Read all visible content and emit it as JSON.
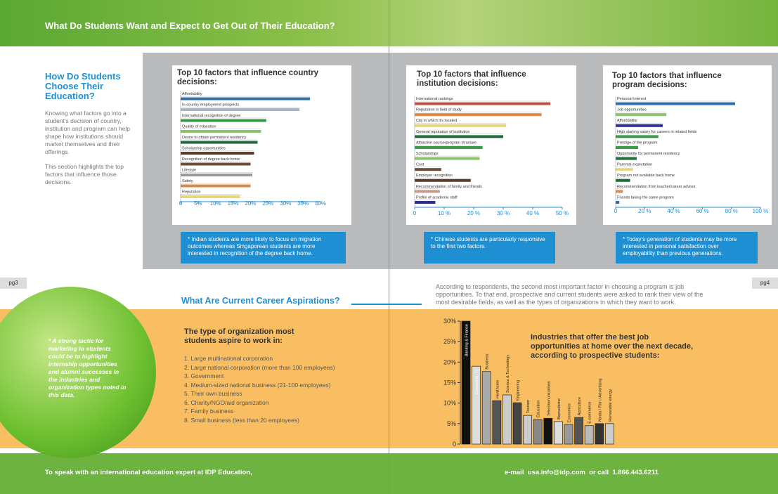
{
  "header": {
    "title": "What Do Students Want and Expect to Get Out of Their Education?"
  },
  "intro": {
    "heading": "How Do Students Choose Their Education?",
    "paragraphs": [
      "Knowing what factors go into a student's decision of country, institution and program can help shape how institutions should market themselves and their offerings.",
      "This section highlights the top factors that influence those decisions."
    ]
  },
  "page_numbers": [
    "pg3",
    "pg4"
  ],
  "chart_data": [
    {
      "type": "hbar",
      "title": "Top 10 factors that influence country decisions:",
      "categories": [
        "Affordability",
        "In-country employment prospects",
        "International recognition of degree",
        "Quality of education",
        "Desire to obtain permanent residency",
        "Scholarship opportunities",
        "Recognition of degree back home",
        "Lifestyle",
        "Safety",
        "Reputation"
      ],
      "values": [
        37,
        34,
        24.5,
        23,
        22,
        21,
        20,
        20.5,
        20,
        17
      ],
      "colors": [
        "#2f6ea6",
        "#a3b6c9",
        "#3a9a4a",
        "#8cc46c",
        "#1f6b3a",
        "#5a3b2c",
        "#6e4c3c",
        "#9a9a9a",
        "#d88a4a",
        "#e6d67e"
      ],
      "xlim": [
        0,
        40
      ],
      "xticks": [
        0,
        {
          "value": 5,
          "label": "5%"
        },
        {
          "value": 10,
          "label": "10%"
        },
        {
          "value": 15,
          "label": "15%"
        },
        {
          "value": 20,
          "label": "20%"
        },
        {
          "value": 25,
          "label": "25%"
        },
        {
          "value": 30,
          "label": "30%"
        },
        {
          "value": 35,
          "label": "35%"
        },
        {
          "value": 40,
          "label": "40%"
        }
      ],
      "note": "* Indian students are more likely to focus on migration outcomes whereas Singaporean students are more interested in recognition of the degree back home."
    },
    {
      "type": "hbar",
      "title": "Top 10 factors that influence institution decisions:",
      "categories": [
        "International rankings",
        "Reputation in field of study",
        "City in which it's located",
        "General reputation of institution",
        "Attractive course/program structure",
        "Scholarships",
        "Cost",
        "Employer recognition",
        "Recommendation of family and friends",
        "Profile of academic staff"
      ],
      "values": [
        46,
        43,
        31,
        30,
        23,
        22,
        9,
        19,
        8.5,
        7
      ],
      "colors": [
        "#c0504a",
        "#d88a4a",
        "#e6d67e",
        "#1f6b3a",
        "#3a9a4a",
        "#8cc46c",
        "#6e4c3c",
        "#5a3b2c",
        "#c99a8a",
        "#2a2f8a"
      ],
      "xlim": [
        0,
        50
      ],
      "xticks": [
        0,
        {
          "value": 10,
          "label": "10 %"
        },
        {
          "value": 20,
          "label": "20 %"
        },
        {
          "value": 30,
          "label": "30 %"
        },
        {
          "value": 40,
          "label": "40 %"
        },
        {
          "value": 50,
          "label": "50 %"
        }
      ],
      "note": "* Chinese students are particularly responsive to the first two factors."
    },
    {
      "type": "hbar",
      "title": "Top 10 factors that influence program decisions:",
      "categories": [
        "Personal interest",
        "Job opportunities",
        "Affordability",
        "High starting salary for careers in related fields",
        "Prestige of the program",
        "Opportunity for permanent residency",
        "Parental expectation",
        "Program not available back home",
        "Recommendation from teacher/career advisor",
        "Friends taking the same program"
      ],
      "values": [
        82.5,
        35,
        32.5,
        29.5,
        15.5,
        14.5,
        12,
        10,
        5,
        2.5
      ],
      "colors": [
        "#2f6ea6",
        "#8cc46c",
        "#2a2f8a",
        "#3a9a4a",
        "#3a9a4a",
        "#1f6b3a",
        "#e6d67e",
        "#1f6b3a",
        "#d88a4a",
        "#2f6ea6"
      ],
      "xlim": [
        0,
        100
      ],
      "xticks": [
        0,
        {
          "value": 20,
          "label": "20 %"
        },
        {
          "value": 40,
          "label": "40 %"
        },
        {
          "value": 60,
          "label": "60 %"
        },
        {
          "value": 80,
          "label": "80 %"
        },
        {
          "value": 100,
          "label": "100 %"
        }
      ],
      "note": "* Today's generation of students may be more interested in personal satisfaction over employability than previous generations."
    },
    {
      "type": "bar",
      "title": "Industries that offer the best job opportunities at home over the next decade, according to prospective students:",
      "categories": [
        "Banking & Finance",
        "Computing / IT",
        "Business",
        "Healthcare",
        "Science & Technology",
        "Engineering",
        "Tourism",
        "Education",
        "Telecommunications",
        "Biomedicine",
        "Economics",
        "Agriculture",
        "E-commerce",
        "Media / Film / Advertising",
        "Renewable energy"
      ],
      "values": [
        30,
        19,
        17.7,
        10.6,
        12,
        10.1,
        7,
        6,
        6.3,
        5.5,
        4.8,
        6.5,
        4.5,
        5,
        5
      ],
      "colors": [
        "#111111",
        "#dddddd",
        "#aaaaaa",
        "#555555",
        "#cccccc",
        "#444444",
        "#cccccc",
        "#888888",
        "#111111",
        "#dddddd",
        "#999999",
        "#555555",
        "#bbbbbb",
        "#333333",
        "#cccccc"
      ],
      "ylim": [
        0,
        30
      ],
      "yticks": [
        0,
        {
          "value": 5,
          "label": "5%"
        },
        {
          "value": 10,
          "label": "10%"
        },
        {
          "value": 15,
          "label": "15%"
        },
        {
          "value": 20,
          "label": "20%"
        },
        {
          "value": 25,
          "label": "25%"
        },
        {
          "value": 30,
          "label": "30%"
        }
      ]
    }
  ],
  "careers": {
    "heading": "What Are Current Career Aspirations?",
    "callout": "* A strong tactic for marketing to students could be to highlight internship opportunities and alumni successes in the industries and organization types noted in this data.",
    "org_heading": "The type of organization most students aspire to work in:",
    "org_list": [
      "1. Large multinational corporation",
      "2. Large national corporation (more than 100 employees)",
      "3. Government",
      "4. Medium-sized national business (21-100 employees)",
      "5. Their own business",
      "6. Charity/NGO/aid organization",
      "7. Family business",
      "8. Small business (less than 20 employees)"
    ],
    "intro_text": "According to respondents, the second most important factor in choosing a program is job opportunities. To that end, prospective and current students were asked to rank their view of the most desirable fields, as well as the types of organizations in which they want to work."
  },
  "footer": {
    "left": "To speak with an international education expert at IDP Education,",
    "right": "e-mail  usa.info@idp.com  or call  1.866.443.6211"
  }
}
